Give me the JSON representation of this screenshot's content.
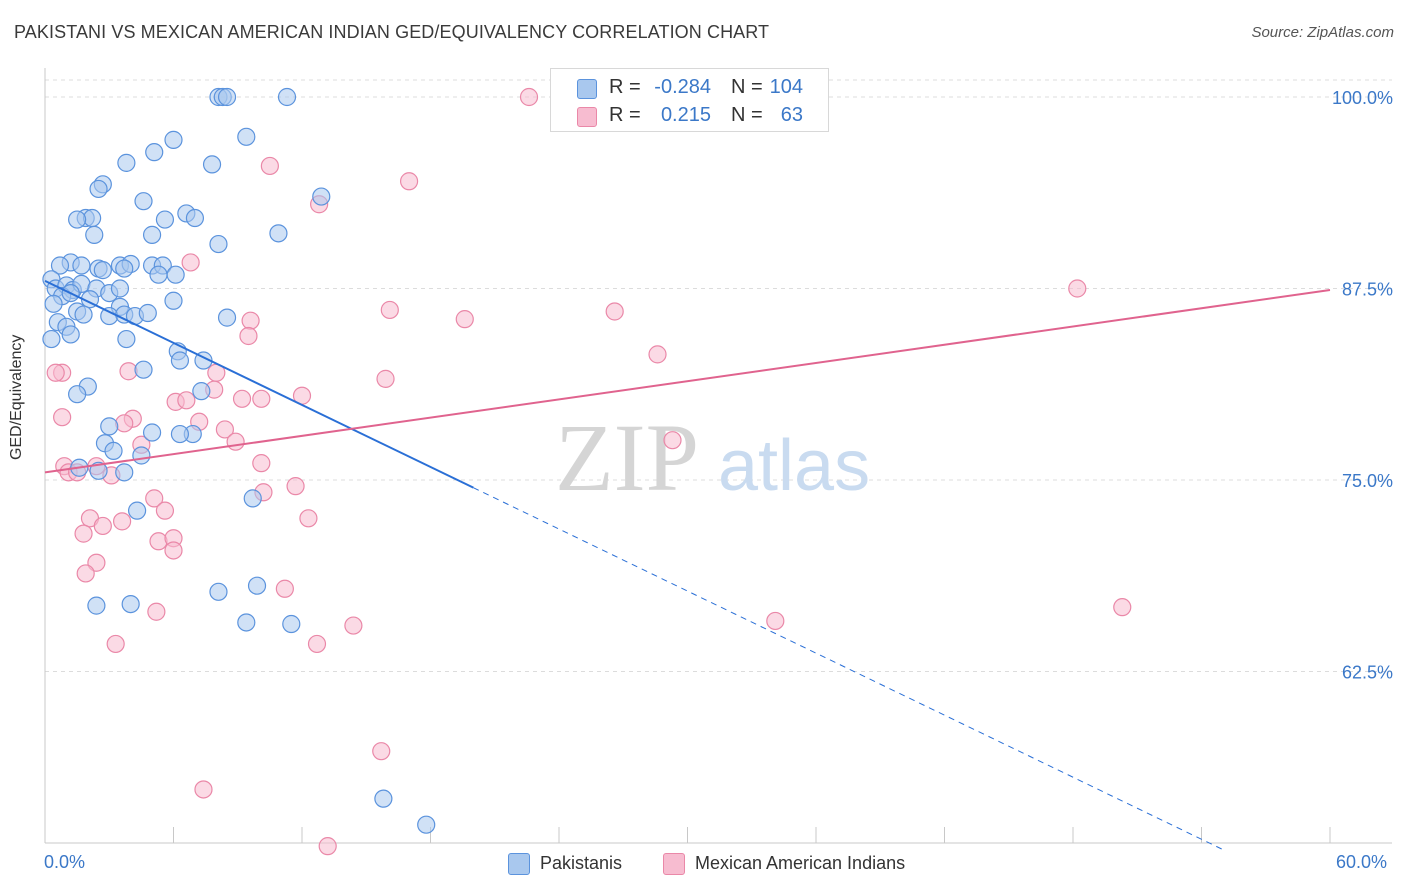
{
  "header": {
    "title": "PAKISTANI VS MEXICAN AMERICAN INDIAN GED/EQUIVALENCY CORRELATION CHART",
    "source": "Source: ZipAtlas.com"
  },
  "watermark": {
    "zip": "ZIP",
    "atlas": "atlas"
  },
  "legend_top": {
    "rows": [
      {
        "r_label": "R =",
        "r_value": "-0.284",
        "n_label": "N =",
        "n_value": "104"
      },
      {
        "r_label": "R =",
        "r_value": "0.215",
        "n_label": "N =",
        "n_value": "63"
      }
    ]
  },
  "legend_bottom": {
    "items": [
      "Pakistanis",
      "Mexican American Indians"
    ]
  },
  "colors": {
    "blue_fill": "#a9c8ee",
    "blue_stroke": "#5b93dd",
    "blue_line": "#2a6fd6",
    "pink_fill": "#f7bcd0",
    "pink_stroke": "#ea88a8",
    "pink_line": "#e0638e",
    "tick_label": "#3b78c8",
    "grid": "#dcdcdc"
  },
  "chart_data": {
    "type": "scatter",
    "title": "PAKISTANI VS MEXICAN AMERICAN INDIAN GED/EQUIVALENCY CORRELATION CHART",
    "xlabel": "",
    "ylabel": "GED/Equivalency",
    "xlim": [
      0,
      60
    ],
    "ylim": [
      50.5,
      102
    ],
    "x_tick_labels": [
      "0.0%",
      "60.0%"
    ],
    "y_ticks": [
      62.5,
      75.0,
      87.5,
      100.0
    ],
    "y_tick_labels": [
      "62.5%",
      "75.0%",
      "87.5%",
      "100.0%"
    ],
    "grid": "horizontal dashed",
    "legend_position": "top-center",
    "series": [
      {
        "name": "Pakistanis",
        "R": -0.284,
        "N": 104,
        "trend": {
          "x0": 0,
          "y0": 88.0,
          "x1": 20,
          "y1": 74.5,
          "dashed_to_x": 55
        },
        "points": [
          [
            8.1,
            100
          ],
          [
            8.3,
            100
          ],
          [
            8.5,
            100
          ],
          [
            11.3,
            100
          ],
          [
            9.4,
            97.4
          ],
          [
            6.0,
            97.2
          ],
          [
            5.1,
            96.4
          ],
          [
            3.8,
            95.7
          ],
          [
            7.8,
            95.6
          ],
          [
            2.7,
            94.3
          ],
          [
            2.5,
            94.0
          ],
          [
            12.9,
            93.5
          ],
          [
            4.6,
            93.2
          ],
          [
            6.6,
            92.4
          ],
          [
            5.6,
            92.0
          ],
          [
            7.0,
            92.1
          ],
          [
            1.9,
            92.1
          ],
          [
            2.2,
            92.1
          ],
          [
            2.3,
            91.0
          ],
          [
            5.0,
            91.0
          ],
          [
            10.9,
            91.1
          ],
          [
            1.5,
            92.0
          ],
          [
            8.1,
            90.4
          ],
          [
            1.2,
            89.2
          ],
          [
            0.7,
            89.0
          ],
          [
            1.7,
            89.0
          ],
          [
            2.5,
            88.8
          ],
          [
            3.5,
            89.0
          ],
          [
            4.0,
            89.1
          ],
          [
            5.0,
            89.0
          ],
          [
            5.5,
            89.0
          ],
          [
            2.7,
            88.7
          ],
          [
            3.7,
            88.8
          ],
          [
            5.3,
            88.4
          ],
          [
            6.1,
            88.4
          ],
          [
            0.3,
            88.1
          ],
          [
            0.5,
            87.5
          ],
          [
            1.0,
            87.7
          ],
          [
            1.3,
            87.4
          ],
          [
            1.7,
            87.8
          ],
          [
            2.4,
            87.5
          ],
          [
            3.0,
            87.2
          ],
          [
            3.5,
            87.5
          ],
          [
            0.8,
            87.0
          ],
          [
            1.2,
            87.2
          ],
          [
            2.1,
            86.8
          ],
          [
            6.0,
            86.7
          ],
          [
            3.5,
            86.3
          ],
          [
            0.4,
            86.5
          ],
          [
            1.5,
            86.0
          ],
          [
            1.8,
            85.8
          ],
          [
            3.0,
            85.7
          ],
          [
            3.7,
            85.8
          ],
          [
            4.2,
            85.7
          ],
          [
            4.8,
            85.9
          ],
          [
            8.5,
            85.6
          ],
          [
            0.6,
            85.3
          ],
          [
            1.0,
            85.0
          ],
          [
            1.2,
            84.5
          ],
          [
            0.3,
            84.2
          ],
          [
            3.8,
            84.2
          ],
          [
            6.2,
            83.4
          ],
          [
            6.3,
            82.8
          ],
          [
            7.4,
            82.8
          ],
          [
            4.6,
            82.2
          ],
          [
            2.0,
            81.1
          ],
          [
            1.5,
            80.6
          ],
          [
            7.3,
            80.8
          ],
          [
            3.0,
            78.5
          ],
          [
            5.0,
            78.1
          ],
          [
            6.9,
            78.0
          ],
          [
            6.3,
            78.0
          ],
          [
            2.8,
            77.4
          ],
          [
            3.2,
            76.9
          ],
          [
            4.5,
            76.6
          ],
          [
            1.6,
            75.8
          ],
          [
            2.5,
            75.6
          ],
          [
            3.7,
            75.5
          ],
          [
            9.7,
            73.8
          ],
          [
            4.3,
            73.0
          ],
          [
            8.1,
            67.7
          ],
          [
            9.9,
            68.1
          ],
          [
            2.4,
            66.8
          ],
          [
            4.0,
            66.9
          ],
          [
            9.4,
            65.7
          ],
          [
            11.5,
            65.6
          ],
          [
            15.8,
            54.2
          ],
          [
            17.8,
            52.5
          ]
        ]
      },
      {
        "name": "Mexican American Indians",
        "R": 0.215,
        "N": 63,
        "trend": {
          "x0": 0,
          "y0": 75.5,
          "x1": 60,
          "y1": 87.4
        },
        "points": [
          [
            22.6,
            100
          ],
          [
            31.7,
            100
          ],
          [
            10.5,
            95.5
          ],
          [
            17.0,
            94.5
          ],
          [
            12.8,
            93.0
          ],
          [
            6.8,
            89.2
          ],
          [
            48.2,
            87.5
          ],
          [
            16.1,
            86.1
          ],
          [
            26.6,
            86.0
          ],
          [
            19.6,
            85.5
          ],
          [
            9.6,
            85.4
          ],
          [
            9.5,
            84.4
          ],
          [
            28.6,
            83.2
          ],
          [
            0.8,
            82.0
          ],
          [
            3.9,
            82.1
          ],
          [
            8.0,
            82.0
          ],
          [
            15.9,
            81.6
          ],
          [
            12.0,
            80.5
          ],
          [
            9.2,
            80.3
          ],
          [
            10.1,
            80.3
          ],
          [
            6.1,
            80.1
          ],
          [
            6.6,
            80.2
          ],
          [
            7.9,
            80.9
          ],
          [
            0.8,
            79.1
          ],
          [
            4.1,
            79.0
          ],
          [
            3.7,
            78.7
          ],
          [
            7.2,
            78.8
          ],
          [
            8.4,
            78.3
          ],
          [
            8.9,
            77.5
          ],
          [
            4.5,
            77.3
          ],
          [
            29.3,
            77.6
          ],
          [
            10.1,
            76.1
          ],
          [
            0.9,
            75.9
          ],
          [
            1.1,
            75.5
          ],
          [
            2.4,
            75.9
          ],
          [
            3.1,
            75.3
          ],
          [
            11.7,
            74.6
          ],
          [
            10.2,
            74.2
          ],
          [
            5.1,
            73.8
          ],
          [
            5.6,
            73.0
          ],
          [
            2.1,
            72.5
          ],
          [
            12.3,
            72.5
          ],
          [
            3.6,
            72.3
          ],
          [
            2.7,
            72.0
          ],
          [
            1.8,
            71.5
          ],
          [
            5.3,
            71.0
          ],
          [
            6.0,
            71.2
          ],
          [
            6.0,
            70.4
          ],
          [
            2.4,
            69.6
          ],
          [
            1.9,
            68.9
          ],
          [
            11.2,
            67.9
          ],
          [
            50.3,
            66.7
          ],
          [
            5.2,
            66.4
          ],
          [
            34.1,
            65.8
          ],
          [
            14.4,
            65.5
          ],
          [
            3.3,
            64.3
          ],
          [
            12.7,
            64.3
          ],
          [
            15.7,
            57.3
          ],
          [
            7.4,
            54.8
          ],
          [
            13.2,
            51.1
          ],
          [
            0.5,
            82.0
          ],
          [
            1.5,
            75.5
          ]
        ]
      }
    ]
  }
}
